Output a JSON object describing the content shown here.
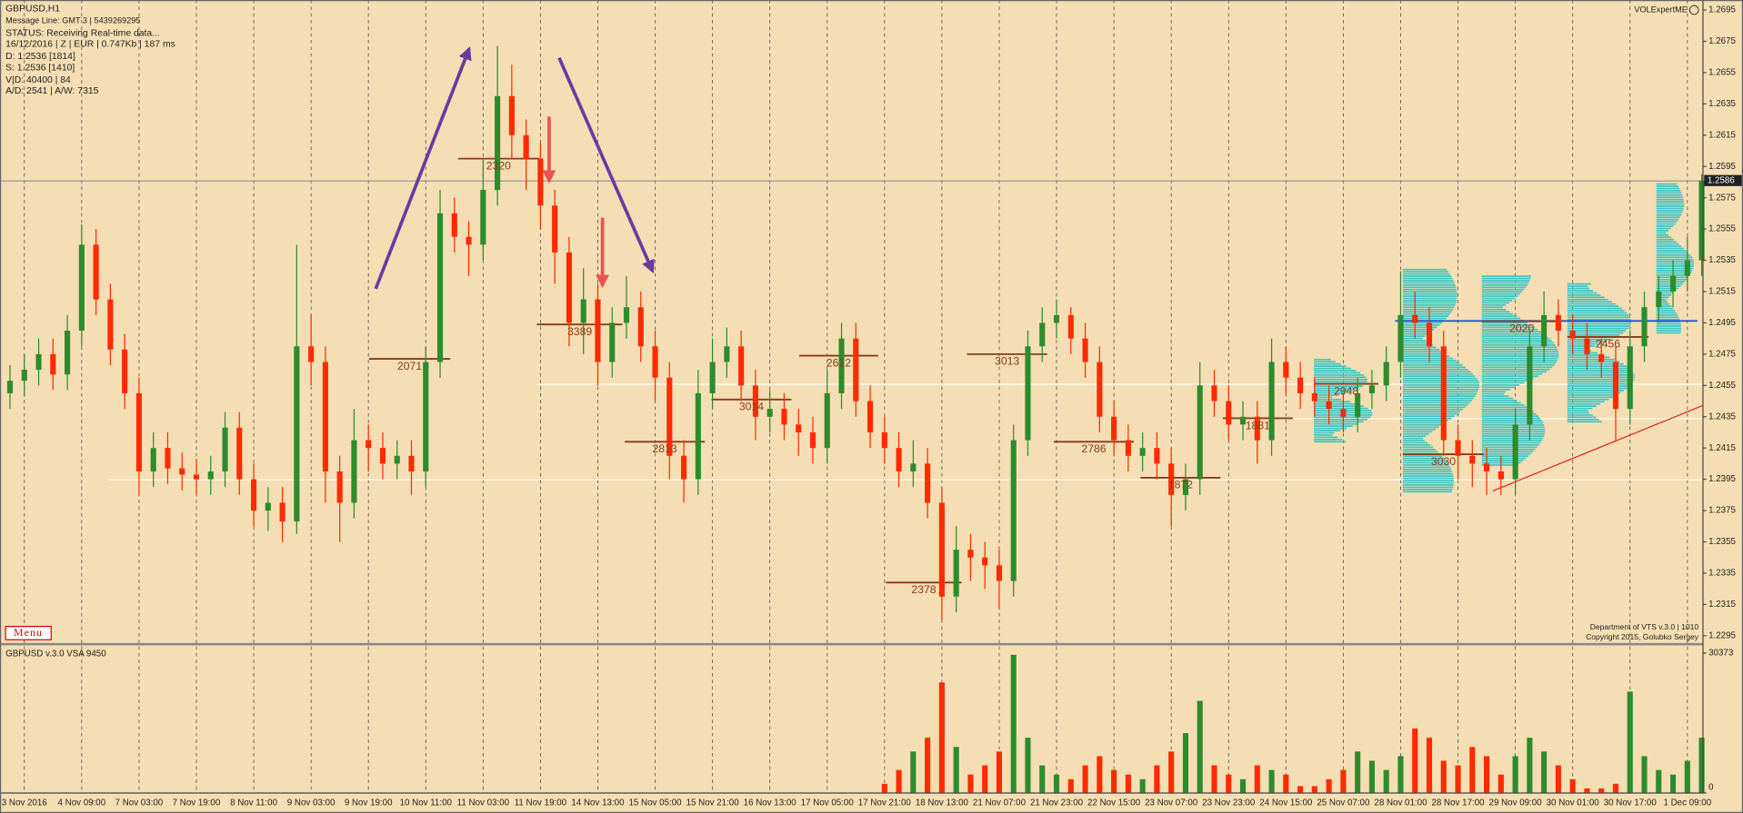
{
  "chart_data": {
    "type": "candlestick",
    "up_color": "#2c8c2c",
    "down_color": "#ff2a00",
    "categories": [
      null,
      "3 Nov 2016",
      null,
      null,
      null,
      "4 Nov 09:00",
      null,
      null,
      null,
      "7 Nov 03:00",
      null,
      null,
      null,
      "7 Nov 19:00",
      null,
      null,
      null,
      "8 Nov 11:00",
      null,
      null,
      null,
      "9 Nov 03:00",
      null,
      null,
      null,
      "9 Nov 19:00",
      null,
      null,
      null,
      "10 Nov 11:00",
      null,
      null,
      null,
      "11 Nov 03:00",
      null,
      null,
      null,
      "11 Nov 19:00",
      null,
      null,
      null,
      "14 Nov 13:00",
      null,
      null,
      null,
      "15 Nov 05:00",
      null,
      null,
      null,
      "15 Nov 21:00",
      null,
      null,
      null,
      "16 Nov 13:00",
      null,
      null,
      null,
      "17 Nov 05:00",
      null,
      null,
      null,
      "17 Nov 21:00",
      null,
      null,
      null,
      "18 Nov 13:00",
      null,
      null,
      null,
      "21 Nov 07:00",
      null,
      null,
      null,
      "21 Nov 23:00",
      null,
      null,
      null,
      "22 Nov 15:00",
      null,
      null,
      null,
      "23 Nov 07:00",
      null,
      null,
      null,
      "23 Nov 23:00",
      null,
      null,
      null,
      "24 Nov 15:00",
      null,
      null,
      null,
      "25 Nov 07:00",
      null,
      null,
      null,
      "28 Nov 01:00",
      null,
      null,
      null,
      "28 Nov 17:00",
      null,
      null,
      null,
      "29 Nov 09:00",
      null,
      null,
      null,
      "30 Nov 01:00",
      null,
      null,
      null,
      "30 Nov 17:00",
      null,
      null,
      null,
      "1 Dec 09:00",
      null
    ],
    "open": [
      1.245,
      1.2458,
      1.2465,
      1.2475,
      1.2462,
      1.249,
      1.2545,
      1.251,
      1.2478,
      1.245,
      1.24,
      1.2415,
      1.2402,
      1.2398,
      1.2395,
      1.24,
      1.2428,
      1.2395,
      1.2375,
      1.238,
      1.2368,
      1.248,
      1.247,
      1.24,
      1.238,
      1.242,
      1.2415,
      1.2405,
      1.241,
      1.24,
      1.247,
      1.2565,
      1.255,
      1.2545,
      1.258,
      1.264,
      1.2615,
      1.26,
      1.257,
      1.254,
      1.2495,
      1.251,
      1.247,
      1.2495,
      1.2505,
      1.248,
      1.246,
      1.241,
      1.2395,
      1.245,
      1.247,
      1.248,
      1.2455,
      1.2435,
      1.244,
      1.243,
      1.2425,
      1.2415,
      1.245,
      1.2485,
      1.2445,
      1.2425,
      1.2415,
      1.24,
      1.2405,
      1.238,
      1.232,
      1.235,
      1.2345,
      1.234,
      1.233,
      1.242,
      1.248,
      1.2495,
      1.25,
      1.2485,
      1.247,
      1.2435,
      1.242,
      1.241,
      1.2415,
      1.2405,
      1.2385,
      1.2395,
      1.2455,
      1.2445,
      1.243,
      1.2435,
      1.242,
      1.247,
      1.246,
      1.245,
      1.2445,
      1.244,
      1.2435,
      1.245,
      1.2455,
      1.247,
      1.25,
      1.2495,
      1.248,
      1.242,
      1.241,
      1.2405,
      1.24,
      1.2395,
      1.243,
      1.248,
      1.25,
      1.249,
      1.2485,
      1.2475,
      1.247,
      1.244,
      1.248,
      1.2505,
      1.2515,
      1.2525,
      1.2535
    ],
    "high": [
      1.2468,
      1.2475,
      1.2485,
      1.2485,
      1.25,
      1.2558,
      1.2555,
      1.252,
      1.2488,
      1.246,
      1.2425,
      1.2425,
      1.2412,
      1.2408,
      1.241,
      1.2438,
      1.2438,
      1.2405,
      1.239,
      1.239,
      1.2545,
      1.25,
      1.248,
      1.241,
      1.244,
      1.243,
      1.2425,
      1.242,
      1.242,
      1.248,
      1.258,
      1.2575,
      1.256,
      1.26,
      1.2672,
      1.266,
      1.2625,
      1.261,
      1.258,
      1.255,
      1.253,
      1.252,
      1.2505,
      1.2525,
      1.2515,
      1.249,
      1.247,
      1.242,
      1.2465,
      1.2485,
      1.2492,
      1.249,
      1.2465,
      1.2452,
      1.245,
      1.244,
      1.2435,
      1.2465,
      1.2495,
      1.2495,
      1.2455,
      1.2435,
      1.2425,
      1.242,
      1.2415,
      1.239,
      1.2365,
      1.236,
      1.2355,
      1.235,
      1.243,
      1.249,
      1.2505,
      1.251,
      1.2505,
      1.2495,
      1.248,
      1.2445,
      1.243,
      1.2425,
      1.2425,
      1.2415,
      1.2405,
      1.247,
      1.2465,
      1.2455,
      1.2445,
      1.2445,
      1.2485,
      1.248,
      1.247,
      1.246,
      1.2455,
      1.245,
      1.246,
      1.2465,
      1.248,
      1.2528,
      1.2515,
      1.2505,
      1.249,
      1.243,
      1.242,
      1.2415,
      1.241,
      1.244,
      1.249,
      1.2515,
      1.251,
      1.25,
      1.2495,
      1.2485,
      1.248,
      1.249,
      1.2515,
      1.2525,
      1.2535,
      1.255,
      1.259
    ],
    "low": [
      1.244,
      1.2448,
      1.2455,
      1.2452,
      1.2452,
      1.248,
      1.25,
      1.2468,
      1.244,
      1.2385,
      1.239,
      1.2392,
      1.2388,
      1.2385,
      1.2385,
      1.239,
      1.2385,
      1.2365,
      1.2362,
      1.2355,
      1.236,
      1.2455,
      1.238,
      1.2355,
      1.237,
      1.24,
      1.2395,
      1.2395,
      1.2385,
      1.239,
      1.246,
      1.254,
      1.2525,
      1.2535,
      1.257,
      1.26,
      1.258,
      1.2555,
      1.252,
      1.248,
      1.2475,
      1.2455,
      1.246,
      1.2485,
      1.247,
      1.2445,
      1.2395,
      1.238,
      1.2385,
      1.244,
      1.246,
      1.2445,
      1.242,
      1.2425,
      1.242,
      1.241,
      1.2405,
      1.2405,
      1.244,
      1.2435,
      1.2415,
      1.2405,
      1.239,
      1.239,
      1.237,
      1.2305,
      1.231,
      1.233,
      1.2325,
      1.2312,
      1.232,
      1.241,
      1.247,
      1.2485,
      1.2475,
      1.246,
      1.2425,
      1.241,
      1.24,
      1.24,
      1.2395,
      1.2365,
      1.2375,
      1.2385,
      1.2435,
      1.242,
      1.242,
      1.2405,
      1.241,
      1.245,
      1.244,
      1.2435,
      1.243,
      1.2425,
      1.2425,
      1.244,
      1.2445,
      1.246,
      1.2485,
      1.247,
      1.241,
      1.2395,
      1.239,
      1.2385,
      1.2385,
      1.2385,
      1.242,
      1.247,
      1.248,
      1.2475,
      1.2465,
      1.246,
      1.242,
      1.243,
      1.247,
      1.2495,
      1.2505,
      1.2515,
      1.2525
    ],
    "close": [
      1.2458,
      1.2465,
      1.2475,
      1.2462,
      1.249,
      1.2545,
      1.251,
      1.2478,
      1.245,
      1.24,
      1.2415,
      1.2402,
      1.2398,
      1.2395,
      1.24,
      1.2428,
      1.2395,
      1.2375,
      1.238,
      1.2368,
      1.248,
      1.247,
      1.24,
      1.238,
      1.242,
      1.2415,
      1.2405,
      1.241,
      1.24,
      1.247,
      1.2565,
      1.255,
      1.2545,
      1.258,
      1.264,
      1.2615,
      1.26,
      1.257,
      1.254,
      1.2495,
      1.251,
      1.247,
      1.2495,
      1.2505,
      1.248,
      1.246,
      1.241,
      1.2395,
      1.245,
      1.247,
      1.248,
      1.2455,
      1.2435,
      1.244,
      1.243,
      1.2425,
      1.2415,
      1.245,
      1.2485,
      1.2445,
      1.2425,
      1.2415,
      1.24,
      1.2405,
      1.238,
      1.232,
      1.235,
      1.2345,
      1.234,
      1.233,
      1.242,
      1.248,
      1.2495,
      1.25,
      1.2485,
      1.247,
      1.2435,
      1.242,
      1.241,
      1.2415,
      1.2405,
      1.2385,
      1.2395,
      1.2455,
      1.2445,
      1.243,
      1.2435,
      1.242,
      1.247,
      1.246,
      1.245,
      1.2445,
      1.244,
      1.2435,
      1.245,
      1.2455,
      1.247,
      1.25,
      1.2495,
      1.248,
      1.242,
      1.241,
      1.2405,
      1.24,
      1.2395,
      1.243,
      1.248,
      1.25,
      1.249,
      1.2485,
      1.2475,
      1.247,
      1.244,
      1.248,
      1.2505,
      1.2515,
      1.2525,
      1.2535,
      1.2586
    ],
    "ylim": [
      1.2291,
      1.27
    ],
    "yticks": [
      1.2295,
      1.2315,
      1.2335,
      1.2355,
      1.2375,
      1.2395,
      1.2415,
      1.2435,
      1.2455,
      1.2475,
      1.2495,
      1.2515,
      1.2535,
      1.2555,
      1.2575,
      1.2595,
      1.2615,
      1.2635,
      1.2655,
      1.2675,
      1.2695
    ],
    "last_price": 1.2586,
    "levels": [
      {
        "label": "2071",
        "value": 1.2472
      },
      {
        "label": "2320",
        "value": 1.26
      },
      {
        "label": "3389",
        "value": 1.2494
      },
      {
        "label": "2813",
        "value": 1.2419
      },
      {
        "label": "3014",
        "value": 1.2446
      },
      {
        "label": "2612",
        "value": 1.2474
      },
      {
        "label": "2378",
        "value": 1.2329
      },
      {
        "label": "3013",
        "value": 1.2475
      },
      {
        "label": "2786",
        "value": 1.2419
      },
      {
        "label": "1872",
        "value": 1.2396
      },
      {
        "label": "1881",
        "value": 1.2434
      },
      {
        "label": "2948",
        "value": 1.2456
      },
      {
        "label": "3030",
        "value": 1.2411
      },
      {
        "label": "2020",
        "value": 1.2496
      },
      {
        "label": "2456",
        "value": 1.2486
      }
    ],
    "volume": {
      "title": "GBPUSD v.3.0 VSA 9450",
      "ylim": [
        0,
        30373
      ],
      "yticks": [
        0,
        30373
      ],
      "values": [
        0,
        0,
        0,
        0,
        0,
        0,
        0,
        0,
        0,
        0,
        0,
        0,
        0,
        0,
        0,
        0,
        0,
        0,
        0,
        0,
        0,
        0,
        0,
        0,
        0,
        0,
        0,
        0,
        0,
        0,
        0,
        0,
        0,
        0,
        0,
        0,
        0,
        0,
        0,
        0,
        0,
        0,
        0,
        0,
        0,
        0,
        0,
        0,
        0,
        0,
        0,
        0,
        0,
        0,
        0,
        0,
        0,
        0,
        0,
        0,
        0,
        2000,
        5000,
        9000,
        12000,
        24000,
        10000,
        4000,
        6000,
        9000,
        30000,
        12000,
        6000,
        4000,
        3000,
        6000,
        8000,
        5000,
        4000,
        3000,
        6000,
        9000,
        13000,
        20000,
        6000,
        4000,
        3000,
        6000,
        5000,
        4000,
        1500,
        1500,
        3000,
        5000,
        9000,
        7000,
        5000,
        8000,
        14000,
        12000,
        7000,
        6000,
        10000,
        8000,
        4000,
        8000,
        12000,
        9000,
        6000,
        3000,
        1000,
        1000,
        2000,
        22000,
        8000,
        5000,
        4000,
        7000,
        12000
      ]
    }
  },
  "overlay": {
    "lines": [
      "GBPUSD,H1",
      "Message Line: GMT 3 | 5439269295",
      "STATUS:  Receiving Real-time data...",
      "16/12/2016 | Z | EUR | 0.747Kb | 187 ms",
      "D: 1.2536  [1814]",
      "S: 1.2536  [1410]",
      "V|D: 40400 | 84",
      "A/D: 2541 | A/W: 7315"
    ],
    "brand": "VOLExpertME",
    "footer": [
      "Department of VTS  v.3.0 | 1010",
      "Copyright 2015, Golubko Sergey"
    ],
    "menu": "Menu"
  }
}
